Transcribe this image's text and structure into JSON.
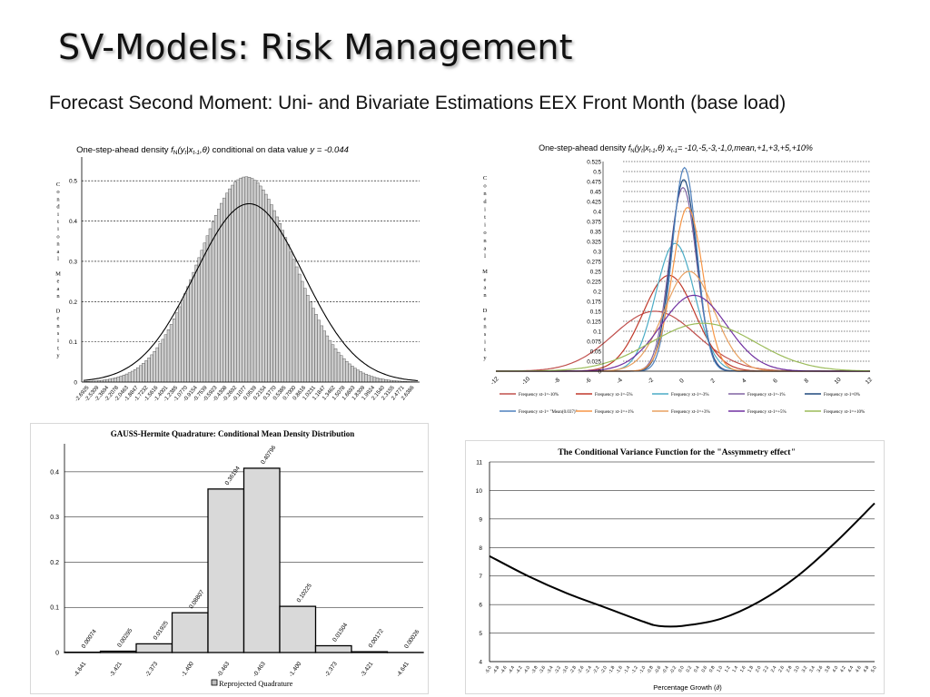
{
  "slide": {
    "title": "SV-Models: Risk Management",
    "subtitle": "Forecast Second Moment: Uni- and Bivariate Estimations EEX Front Month (base load)"
  },
  "charts": {
    "c1": {
      "title_prefix": "One-step-ahead density ",
      "title_fn": "f",
      "title_fn_sub": "N",
      "title_args": "(y",
      "title_args_sub": "t",
      "title_args2": "|x",
      "title_args2_sub": "t-1",
      "title_args3": ",θ)",
      "title_mid": " conditional on data value ",
      "title_y": "y = -0.044",
      "ylabel": "Conditional Mean Density"
    },
    "c2": {
      "title_prefix": "One-step-ahead density ",
      "title_fn": "f",
      "title_fn_sub": "N",
      "title_args": "(y",
      "title_args_sub": "t",
      "title_args2": "|x",
      "title_args2_sub": "t-1",
      "title_args3": ",θ) x",
      "title_args3_sub": "t-1",
      "title_tail": "= -10,-5,-3,-1,0,mean,+1,+3,+5,+10%",
      "ylabel": "Conditional Mean Density"
    },
    "c3": {
      "title": "GAUSS-Hermite Quadrature: Conditional Mean Density Distribution",
      "legend": "Reprojected Quadrature"
    },
    "c4": {
      "title_main": "The Conditional Variance Function for the \"Assymmetry effect",
      "title_end": "\"",
      "xlabel_main": "Percentage Growth (",
      "xlabel_sym": "∂",
      "xlabel_end": ")"
    }
  },
  "chart_data": [
    {
      "type": "bar",
      "id": "density_histogram",
      "title": "One-step-ahead density fN(yt|xt-1,θ) conditional on data value y = -0.044",
      "ylabel": "Conditional Mean Density",
      "ylim": [
        0,
        0.55
      ],
      "yticks": [
        0,
        0.1,
        0.2,
        0.3,
        0.4,
        0.5
      ],
      "ytick_labels": [
        "0",
        "0.1",
        "0.2",
        "0.3",
        "0.4",
        "0.5"
      ],
      "bar_count": 120,
      "bar_mean": 0.0,
      "bar_sd": 0.78,
      "bar_peak": 0.51,
      "curve_mean": 0.05,
      "curve_sd": 0.9,
      "curve_peak": 0.443,
      "x_range": [
        -2.7,
        2.85
      ],
      "xtick_labels": [
        "-2.6925",
        "-2.5309",
        "-2.3694",
        "-2.2078",
        "-2.0463",
        "-1.8847",
        "-1.7232",
        "-1.5616",
        "-1.4001",
        "-1.2385",
        "-1.0770",
        "-0.9154",
        "-0.7539",
        "-0.5923",
        "-0.4308",
        "-0.2692",
        "-0.1077",
        "0.0539",
        "0.2154",
        "0.3770",
        "0.5385",
        "0.7000",
        "0.8616",
        "1.0231",
        "1.1847",
        "1.3462",
        "1.5078",
        "1.6693",
        "1.8309",
        "1.9924",
        "2.1540",
        "2.3155",
        "2.4771",
        "2.6386"
      ],
      "grid": true
    },
    {
      "type": "line",
      "id": "conditional_densities",
      "title": "One-step-ahead density fN(yt|xt-1,θ) xt-1= -10,-5,-3,-1,0,mean,+1,+3,+5,+10%",
      "ylabel": "Conditional Mean Density",
      "xlim": [
        -12,
        12
      ],
      "ylim": [
        0,
        0.525
      ],
      "xticks": [
        -12,
        -10,
        -8,
        -6,
        -4,
        -2,
        0,
        2,
        4,
        6,
        8,
        10,
        12
      ],
      "xtick_labels": [
        "-12",
        "-10",
        "-8",
        "-6",
        "-4",
        "-2",
        "0",
        "2",
        "4",
        "6",
        "8",
        "10",
        "12"
      ],
      "yticks": [
        0,
        0.025,
        0.05,
        0.075,
        0.1,
        0.125,
        0.15,
        0.175,
        0.2,
        0.225,
        0.25,
        0.275,
        0.3,
        0.325,
        0.35,
        0.375,
        0.4,
        0.425,
        0.45,
        0.475,
        0.5,
        0.525
      ],
      "ytick_labels": [
        "0",
        "0.025",
        "0.05",
        "0.075",
        "0.1",
        "0.125",
        "0.15",
        "0.175",
        "0.2",
        "0.225",
        "0.25",
        "0.275",
        "0.3",
        "0.325",
        "0.35",
        "0.375",
        "0.4",
        "0.425",
        "0.45",
        "0.475",
        "0.5",
        "0.525"
      ],
      "series": [
        {
          "name": "Frequency xt-1=-10%",
          "color": "#c0504d",
          "mean": -1.8,
          "peak": 0.15
        },
        {
          "name": "Frequency xt-1=-5%",
          "color": "#c0392b",
          "mean": -0.9,
          "peak": 0.24
        },
        {
          "name": "Frequency xt-1=-3%",
          "color": "#4bacc6",
          "mean": -0.5,
          "peak": 0.32
        },
        {
          "name": "Frequency xt-1=-1%",
          "color": "#8064a2",
          "mean": 0.0,
          "peak": 0.46
        },
        {
          "name": "Frequency xt-1=0%",
          "color": "#1f497d",
          "mean": 0.05,
          "peak": 0.48
        },
        {
          "name": "Frequency xt-1= \"Mean(0.037)\"",
          "color": "#4f81bd",
          "mean": 0.1,
          "peak": 0.51
        },
        {
          "name": "Frequency xt-1=+1%",
          "color": "#f79646",
          "mean": 0.3,
          "peak": 0.41
        },
        {
          "name": "Frequency xt-1=+3%",
          "color": "#e8a060",
          "mean": 0.4,
          "peak": 0.25
        },
        {
          "name": "Frequency xt-1=+5%",
          "color": "#7030a0",
          "mean": 0.7,
          "peak": 0.19
        },
        {
          "name": "Frequency xt-1=+10%",
          "color": "#9bbb59",
          "mean": 1.3,
          "peak": 0.12
        }
      ],
      "legend_position": "bottom",
      "grid": true
    },
    {
      "type": "bar",
      "id": "gauss_hermite",
      "title": "GAUSS-Hermite Quadrature: Conditional Mean Density Distribution",
      "categories": [
        "-4.641",
        "-3.421",
        "-2.373",
        "-1.400",
        "-0.463",
        "-0.463",
        "-1.400",
        "-2.373",
        "-3.421",
        "-4.641"
      ],
      "values": [
        0.00074,
        0.00295,
        0.01925,
        0.08807,
        0.36194,
        0.40796,
        0.10225,
        0.01504,
        0.00172,
        0.00026
      ],
      "value_labels": [
        "0.00074",
        "0.00295",
        "0.01925",
        "0.08807",
        "0.36194",
        "0.40796",
        "0.10225",
        "0.01504",
        "0.00172",
        "0.00026"
      ],
      "ylim": [
        0,
        0.45
      ],
      "yticks": [
        0,
        0.1,
        0.2,
        0.3,
        0.4
      ],
      "ytick_labels": [
        "0",
        "0.1",
        "0.2",
        "0.3",
        "0.4"
      ],
      "legend": [
        "Reprojected Quadrature"
      ],
      "legend_position": "bottom",
      "grid": true
    },
    {
      "type": "line",
      "id": "variance_function",
      "title": "The Conditional Variance Function for the \"Assymmetry effect\"",
      "xlabel": "Percentage Growth (∂)",
      "xlim": [
        -5.0,
        5.0
      ],
      "ylim": [
        4,
        11
      ],
      "yticks": [
        4,
        5,
        6,
        7,
        8,
        9,
        10,
        11
      ],
      "ytick_labels": [
        "4",
        "5",
        "6",
        "7",
        "8",
        "9",
        "10",
        "11"
      ],
      "xtick_labels": [
        "-5.0",
        "-4.8",
        "-4.6",
        "-4.4",
        "-4.2",
        "-4.0",
        "-3.8",
        "-3.6",
        "-3.4",
        "-3.2",
        "-3.0",
        "-2.8",
        "-2.6",
        "-2.4",
        "-2.2",
        "-2.0",
        "-1.8",
        "-1.6",
        "-1.4",
        "-1.2",
        "-1.0",
        "-0.8",
        "-0.6",
        "-0.4",
        "-0.2",
        "0.0",
        "0.2",
        "0.4",
        "0.6",
        "0.8",
        "1.0",
        "1.2",
        "1.4",
        "1.6",
        "1.8",
        "2.0",
        "2.2",
        "2.4",
        "2.6",
        "2.8",
        "3.0",
        "3.2",
        "3.4",
        "3.6",
        "3.8",
        "4.0",
        "4.2",
        "4.4",
        "4.6",
        "4.8",
        "5.0"
      ],
      "x": [
        -5.0,
        -4.0,
        -3.0,
        -2.0,
        -1.0,
        -0.6,
        0.0,
        1.0,
        2.0,
        3.0,
        4.0,
        5.0
      ],
      "y": [
        7.7,
        7.0,
        6.4,
        5.9,
        5.4,
        5.25,
        5.25,
        5.5,
        6.1,
        7.0,
        8.2,
        9.55
      ],
      "grid": true
    }
  ]
}
